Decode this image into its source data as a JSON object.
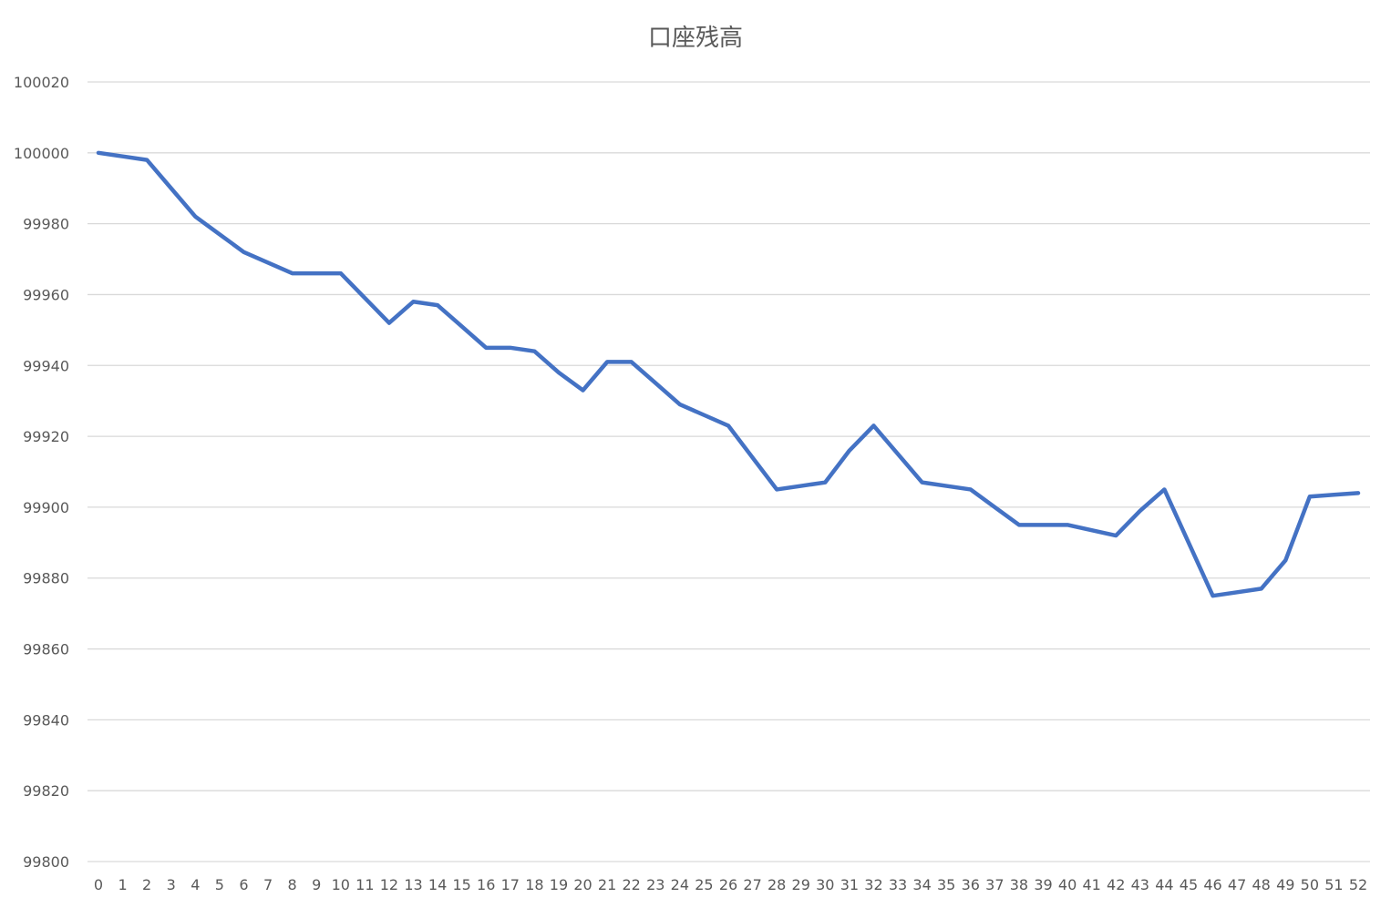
{
  "chart_data": {
    "type": "line",
    "title": "口座残高",
    "xlabel": "",
    "ylabel": "",
    "x": [
      0,
      1,
      2,
      3,
      4,
      5,
      6,
      7,
      8,
      9,
      10,
      11,
      12,
      13,
      14,
      15,
      16,
      17,
      18,
      19,
      20,
      21,
      22,
      23,
      24,
      25,
      26,
      27,
      28,
      29,
      30,
      31,
      32,
      33,
      34,
      35,
      36,
      37,
      38,
      39,
      40,
      41,
      42,
      43,
      44,
      45,
      46,
      47,
      48,
      49,
      50,
      51,
      52
    ],
    "ylim": [
      99800,
      100020
    ],
    "yticks": [
      99800,
      99820,
      99840,
      99860,
      99880,
      99900,
      99920,
      99940,
      99960,
      99980,
      100000,
      100020
    ],
    "grid": true,
    "legend": "none",
    "series": [
      {
        "color": "#4472c4",
        "values": [
          100000,
          99999,
          99998,
          99990,
          99982,
          99977,
          99972,
          99969,
          99966,
          99966,
          99966,
          99959,
          99952,
          99958,
          99957,
          99951,
          99945,
          99945,
          99944,
          99938,
          99933,
          99941,
          99941,
          99935,
          99929,
          99926,
          99923,
          99914,
          99905,
          99906,
          99907,
          99916,
          99923,
          99915,
          99907,
          99906,
          99905,
          99900,
          99895,
          99895,
          99895,
          99893.5,
          99892,
          99899,
          99905,
          99890,
          99875,
          99876,
          99877,
          99885,
          99903,
          99903.5,
          99904
        ]
      }
    ]
  }
}
